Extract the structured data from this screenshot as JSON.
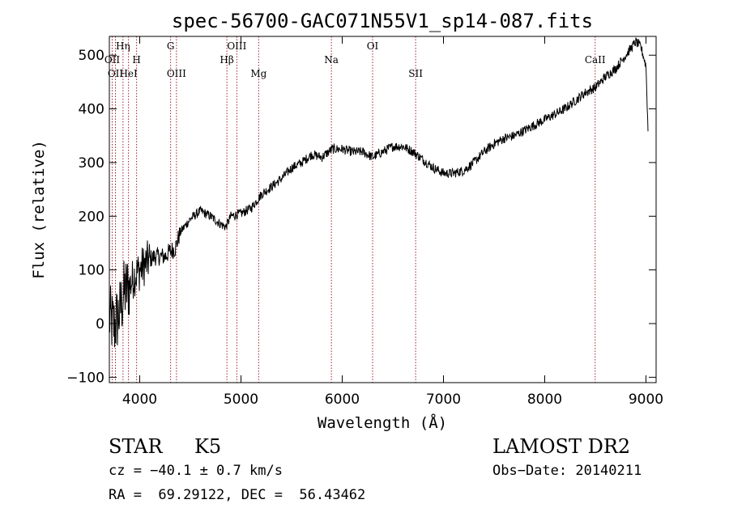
{
  "chart_data": {
    "type": "line",
    "title": "spec-56700-GAC071N55V1_sp14-087.fits",
    "xlabel": "Wavelength (Å)",
    "ylabel": "Flux (relative)",
    "xlim": [
      3700,
      9100
    ],
    "ylim": [
      -110,
      535
    ],
    "xticks": [
      4000,
      5000,
      6000,
      7000,
      8000,
      9000
    ],
    "yticks": [
      -100,
      0,
      100,
      200,
      300,
      400,
      500
    ],
    "grid": false,
    "line_color": "#000000",
    "marker_color": "#a0202a",
    "series": [
      {
        "x": [
          3700,
          3750,
          3800,
          3850,
          3900,
          3950,
          4000,
          4050,
          4100,
          4150,
          4200,
          4250,
          4300,
          4350,
          4400,
          4500,
          4600,
          4700,
          4800,
          4850,
          4900,
          5000,
          5100,
          5200,
          5300,
          5400,
          5500,
          5600,
          5700,
          5800,
          5900,
          6000,
          6100,
          6200,
          6300,
          6400,
          6500,
          6600,
          6700,
          6800,
          6900,
          7000,
          7100,
          7200,
          7300,
          7400,
          7500,
          7600,
          7700,
          7800,
          7900,
          8000,
          8100,
          8200,
          8300,
          8400,
          8500,
          8600,
          8700,
          8800,
          8900,
          8950,
          9000,
          9020
        ],
        "y": [
          10,
          -5,
          20,
          60,
          70,
          90,
          100,
          110,
          120,
          125,
          125,
          125,
          135,
          140,
          170,
          195,
          210,
          200,
          185,
          180,
          200,
          205,
          215,
          240,
          255,
          270,
          290,
          300,
          315,
          310,
          325,
          325,
          320,
          320,
          310,
          320,
          330,
          330,
          320,
          305,
          290,
          280,
          280,
          285,
          300,
          320,
          335,
          345,
          350,
          360,
          370,
          380,
          390,
          400,
          415,
          430,
          440,
          460,
          475,
          500,
          525,
          515,
          480,
          360
        ]
      }
    ],
    "lines": [
      {
        "x": 3728,
        "label": "OII",
        "row": 2
      },
      {
        "x": 3760,
        "label": "OII",
        "row": 3
      },
      {
        "x": 3835,
        "label": "Hη",
        "row": 1
      },
      {
        "x": 3889,
        "label": "HeI",
        "row": 3
      },
      {
        "x": 3969,
        "label": "H",
        "row": 2
      },
      {
        "x": 4305,
        "label": "G",
        "row": 1
      },
      {
        "x": 4363,
        "label": "OIII",
        "row": 3
      },
      {
        "x": 4861,
        "label": "Hβ",
        "row": 2
      },
      {
        "x": 4959,
        "label": "OIII",
        "row": 1
      },
      {
        "x": 5175,
        "label": "Mg",
        "row": 3
      },
      {
        "x": 5893,
        "label": "Na",
        "row": 2
      },
      {
        "x": 6300,
        "label": "OI",
        "row": 1
      },
      {
        "x": 6725,
        "label": "SII",
        "row": 3
      },
      {
        "x": 8498,
        "label": "CaII",
        "row": 2
      }
    ]
  },
  "info": {
    "object_class": "STAR",
    "subclass": "K5",
    "survey": "LAMOST DR2",
    "cz": "cz = −40.1 ± 0.7 km/s",
    "obs_date": "Obs−Date: 20140211",
    "radec": "RA =  69.29122, DEC =  56.43462"
  }
}
